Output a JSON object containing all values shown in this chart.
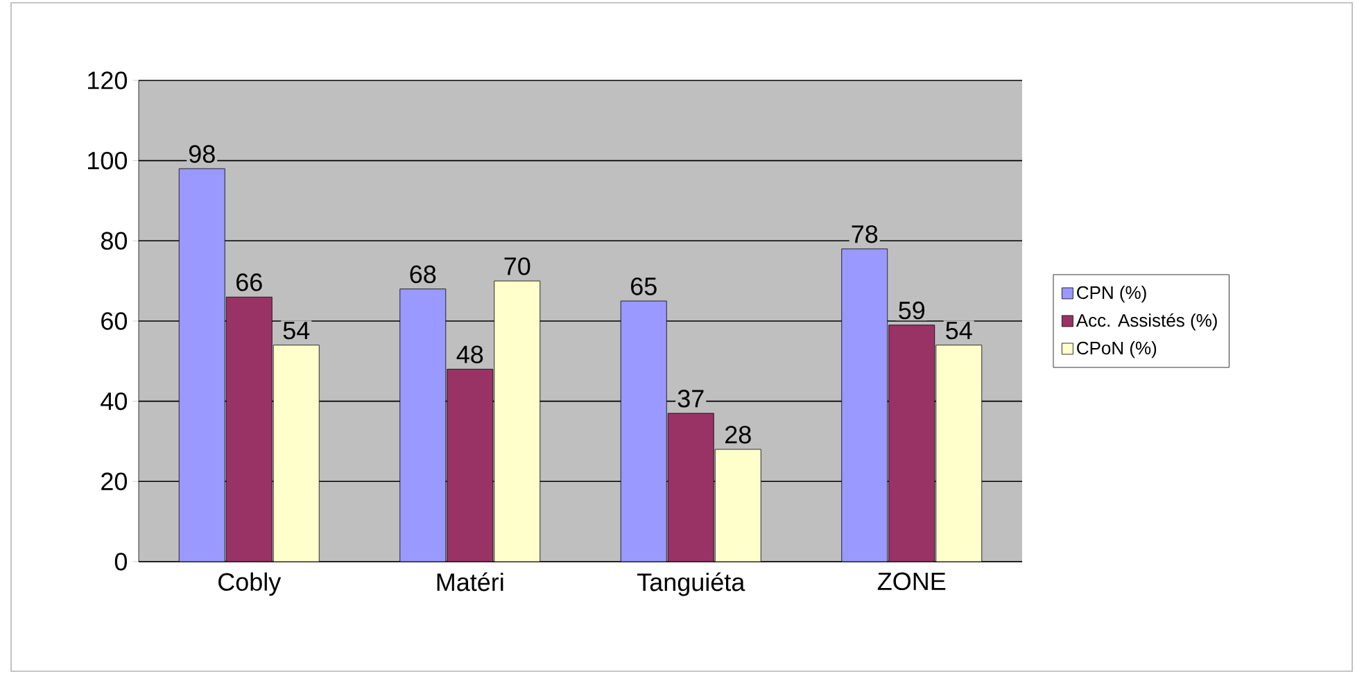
{
  "chart_data": {
    "type": "bar",
    "categories": [
      "Cobly",
      "Matéri",
      "Tanguiéta",
      "ZONE"
    ],
    "series": [
      {
        "name": "CPN (%)",
        "color": "#9999ff",
        "values": [
          98,
          68,
          65,
          78
        ]
      },
      {
        "name": "Acc. Assistés (%)",
        "color": "#993366",
        "values": [
          66,
          48,
          37,
          59
        ]
      },
      {
        "name": "CPoN (%)",
        "color": "#ffffcc",
        "values": [
          54,
          70,
          28,
          54
        ]
      }
    ],
    "ylim": [
      0,
      120
    ],
    "yticks": [
      0,
      20,
      40,
      60,
      80,
      100,
      120
    ],
    "grid": "y",
    "legend": "right",
    "data_labels": true
  }
}
